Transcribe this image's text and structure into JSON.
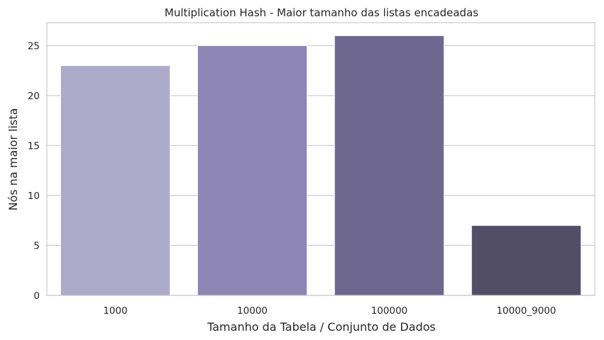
{
  "chart_data": {
    "type": "bar",
    "title": "Multiplication Hash - Maior tamanho das listas encadeadas",
    "xlabel": "Tamanho da Tabela / Conjunto de Dados",
    "ylabel": "Nós na maior lista",
    "categories": [
      "1000",
      "10000",
      "100000",
      "10000_9000"
    ],
    "values": [
      23,
      25,
      26,
      7
    ],
    "ylim": [
      0,
      27.3
    ],
    "yticks": [
      0,
      5,
      10,
      15,
      20,
      25
    ],
    "grid": "horizontal",
    "colors": [
      "#ADAACA",
      "#8D85B3",
      "#6E678F",
      "#524E67"
    ]
  }
}
